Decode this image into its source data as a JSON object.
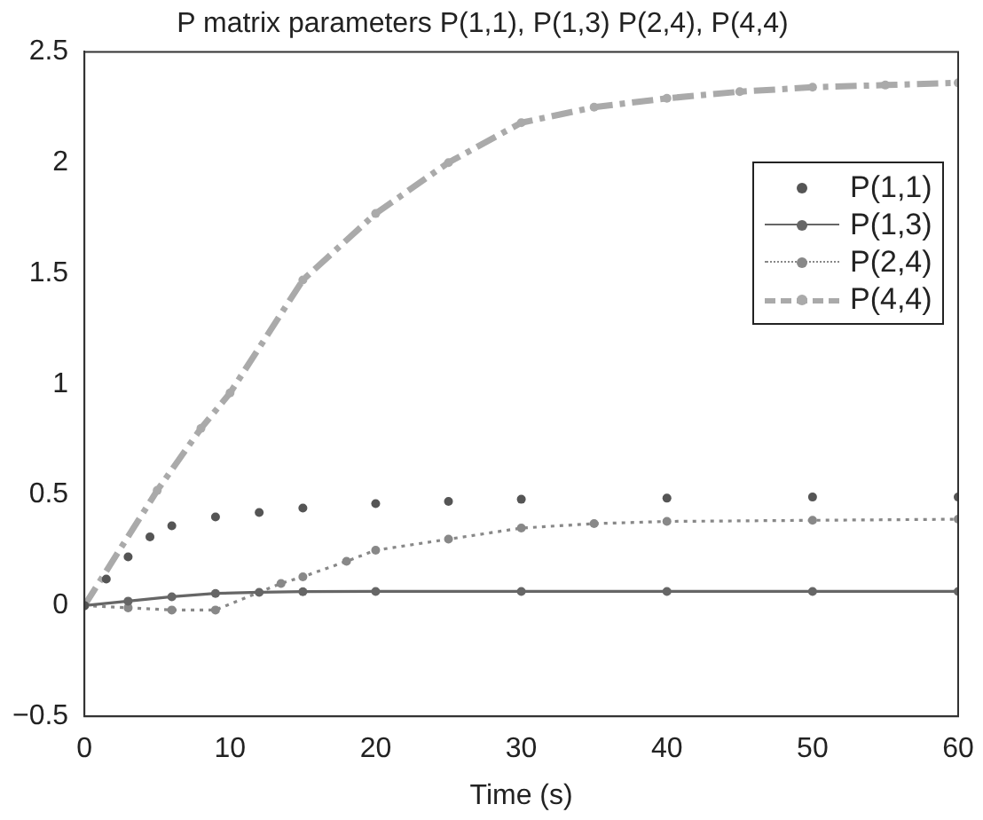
{
  "chart_data": {
    "type": "line",
    "title": "P matrix parameters P(1,1), P(1,3) P(2,4), P(4,4)",
    "xlabel": "Time (s)",
    "xlim": [
      0,
      60
    ],
    "xticks": [
      0,
      10,
      20,
      30,
      40,
      50,
      60
    ],
    "ylim": [
      -0.5,
      2.5
    ],
    "yticks": [
      {
        "value": -0.5,
        "label": "−0.5"
      },
      0,
      0.5,
      1,
      1.5,
      2,
      2.5
    ],
    "grid": false,
    "legend": "top right",
    "marker": "circle",
    "series": [
      {
        "name": "P(1,1)",
        "type": "scatter",
        "color": "#555555",
        "x": [
          0,
          1.5,
          3,
          4.5,
          6,
          9,
          12,
          15,
          20,
          25,
          30,
          40,
          50,
          60
        ],
        "values": [
          0,
          0.12,
          0.22,
          0.31,
          0.36,
          0.4,
          0.42,
          0.44,
          0.46,
          0.47,
          0.48,
          0.485,
          0.49,
          0.49
        ]
      },
      {
        "name": "P(1,3)",
        "line_style": "solid",
        "color": "#666666",
        "x": [
          0,
          3,
          6,
          9,
          12,
          15,
          20,
          30,
          40,
          50,
          60
        ],
        "values": [
          0,
          0.02,
          0.04,
          0.055,
          0.06,
          0.063,
          0.064,
          0.064,
          0.064,
          0.064,
          0.064
        ]
      },
      {
        "name": "P(2,4)",
        "line_style": "dotted",
        "color": "#888888",
        "x": [
          0,
          3,
          6,
          9,
          13.5,
          15,
          18,
          20,
          25,
          30,
          35,
          40,
          50,
          60
        ],
        "values": [
          0,
          -0.01,
          -0.02,
          -0.02,
          0.1,
          0.13,
          0.2,
          0.25,
          0.3,
          0.35,
          0.37,
          0.38,
          0.385,
          0.39
        ]
      },
      {
        "name": "P(4,4)",
        "line_style": "dashed",
        "color": "#aaaaaa",
        "x": [
          0,
          5,
          8,
          10,
          15,
          20,
          25,
          30,
          35,
          40,
          45,
          50,
          55,
          60
        ],
        "values": [
          0,
          0.52,
          0.8,
          0.96,
          1.47,
          1.77,
          2.0,
          2.18,
          2.25,
          2.29,
          2.32,
          2.34,
          2.35,
          2.36
        ]
      }
    ]
  }
}
